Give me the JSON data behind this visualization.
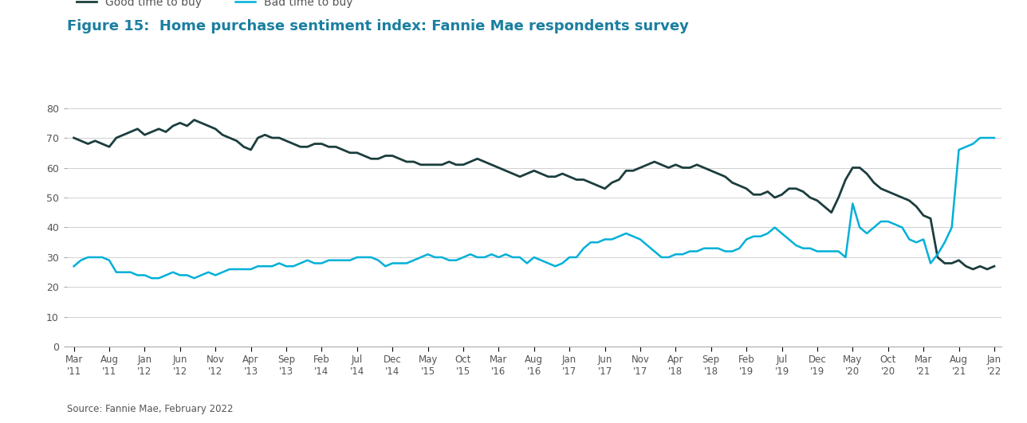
{
  "title": "Figure 15:  Home purchase sentiment index: Fannie Mae respondents survey",
  "title_color": "#1a7fa0",
  "source_text": "Source: Fannie Mae, February 2022",
  "legend": [
    {
      "label": "Good time to buy",
      "color": "#1c3d3d",
      "linewidth": 2.0
    },
    {
      "label": "Bad time to buy",
      "color": "#00b0d8",
      "linewidth": 1.8
    }
  ],
  "ylim": [
    0,
    85
  ],
  "yticks": [
    0,
    10,
    20,
    30,
    40,
    50,
    60,
    70,
    80
  ],
  "xtick_labels": [
    "Mar\n'11",
    "Aug\n'11",
    "Jan\n'12",
    "Jun\n'12",
    "Nov\n'12",
    "Apr\n'13",
    "Sep\n'13",
    "Feb\n'14",
    "Jul\n'14",
    "Dec\n'14",
    "May\n'15",
    "Oct\n'15",
    "Mar\n'16",
    "Aug\n'16",
    "Jan\n'17",
    "Jun\n'17",
    "Nov\n'17",
    "Apr\n'18",
    "Sep\n'18",
    "Feb\n'19",
    "Jul\n'19",
    "Dec\n'19",
    "May\n'20",
    "Oct\n'20",
    "Mar\n'21",
    "Aug\n'21",
    "Jan\n'22"
  ],
  "good_to_buy": [
    70,
    69,
    68,
    69,
    68,
    67,
    70,
    71,
    72,
    73,
    71,
    72,
    73,
    72,
    74,
    75,
    74,
    76,
    75,
    74,
    73,
    71,
    70,
    69,
    67,
    66,
    70,
    71,
    70,
    70,
    69,
    68,
    67,
    67,
    68,
    68,
    67,
    67,
    66,
    65,
    65,
    64,
    63,
    63,
    64,
    64,
    63,
    62,
    62,
    61,
    61,
    61,
    61,
    62,
    61,
    61,
    62,
    63,
    62,
    61,
    60,
    59,
    58,
    57,
    58,
    59,
    58,
    57,
    57,
    58,
    57,
    56,
    56,
    55,
    54,
    53,
    55,
    56,
    59,
    59,
    60,
    61,
    62,
    61,
    60,
    61,
    60,
    60,
    61,
    60,
    59,
    58,
    57,
    55,
    54,
    53,
    51,
    51,
    52,
    50,
    51,
    53,
    53,
    52,
    50,
    49,
    47,
    45,
    50,
    56,
    60,
    60,
    58,
    55,
    53,
    52,
    51,
    50,
    49,
    47,
    44,
    43,
    30,
    28,
    28,
    29,
    27,
    26,
    27,
    26,
    27
  ],
  "bad_to_buy": [
    27,
    29,
    30,
    30,
    30,
    29,
    25,
    25,
    25,
    24,
    24,
    23,
    23,
    24,
    25,
    24,
    24,
    23,
    24,
    25,
    24,
    25,
    26,
    26,
    26,
    26,
    27,
    27,
    27,
    28,
    27,
    27,
    28,
    29,
    28,
    28,
    29,
    29,
    29,
    29,
    30,
    30,
    30,
    29,
    27,
    28,
    28,
    28,
    29,
    30,
    31,
    30,
    30,
    29,
    29,
    30,
    31,
    30,
    30,
    31,
    30,
    31,
    30,
    30,
    28,
    30,
    29,
    28,
    27,
    28,
    30,
    30,
    33,
    35,
    35,
    36,
    36,
    37,
    38,
    37,
    36,
    34,
    32,
    30,
    30,
    31,
    31,
    32,
    32,
    33,
    33,
    33,
    32,
    32,
    33,
    36,
    37,
    37,
    38,
    40,
    38,
    36,
    34,
    33,
    33,
    32,
    32,
    32,
    32,
    30,
    48,
    40,
    38,
    40,
    42,
    42,
    41,
    40,
    36,
    35,
    36,
    28,
    31,
    35,
    40,
    66,
    67,
    68,
    70,
    70,
    70
  ],
  "n_points": 131,
  "background_color": "#ffffff",
  "top_bar_color": "#00b0d8",
  "grid_color": "#d0d0d0"
}
